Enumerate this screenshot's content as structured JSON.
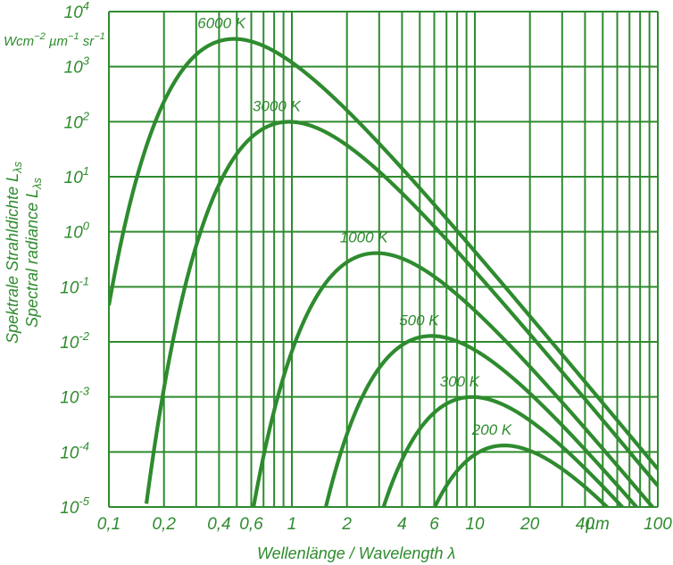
{
  "chart_data": {
    "type": "line",
    "title": "",
    "xscale": "log",
    "yscale": "log",
    "xlim": [
      0.1,
      100
    ],
    "ylim": [
      1e-05,
      10000
    ],
    "grid": true,
    "color": "#2e8b2e",
    "x_tick_labels": [
      "0,1",
      "0,2",
      "0,4",
      "0,6",
      "1",
      "2",
      "4",
      "6",
      "10",
      "20",
      "40",
      "100"
    ],
    "x_tick_values": [
      0.1,
      0.2,
      0.4,
      0.6,
      1,
      2,
      4,
      6,
      10,
      20,
      40,
      100
    ],
    "y_tick_values": [
      1e-05,
      0.0001,
      0.001,
      0.01,
      0.1,
      1,
      10,
      100,
      1000,
      10000
    ],
    "y_tick_exponents": [
      "-5",
      "-4",
      "-3",
      "-2",
      "-1",
      "0",
      "1",
      "2",
      "3",
      "4"
    ],
    "y_tick_base": "10",
    "x_unit_label": "µm",
    "xlabel": "Wellenlänge / Wavelength λ",
    "ylabel_de": "Spektrale Strahldichte L",
    "ylabel_en": "Spectral radiance L",
    "ylabel_subscript": "λs",
    "y_unit": {
      "parts": [
        {
          "t": "Wcm",
          "sup": false
        },
        {
          "t": "−2",
          "sup": true
        },
        {
          "t": " µm",
          "sup": false
        },
        {
          "t": "−1",
          "sup": true
        },
        {
          "t": " sr",
          "sup": false
        },
        {
          "t": "−1",
          "sup": true
        }
      ]
    },
    "series": [
      {
        "name": "6000 K",
        "T": 6000
      },
      {
        "name": "3000 K",
        "T": 3000
      },
      {
        "name": "1000 K",
        "T": 1000
      },
      {
        "name": "500 K",
        "T": 500
      },
      {
        "name": "300 K",
        "T": 300
      },
      {
        "name": "200 K",
        "T": 200
      }
    ]
  }
}
